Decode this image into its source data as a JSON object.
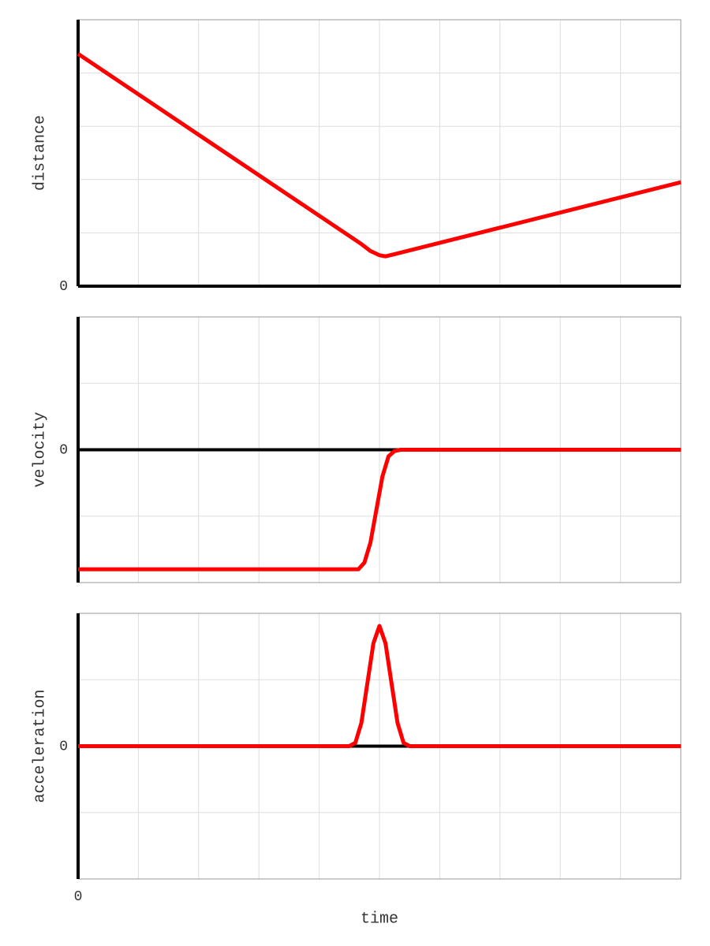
{
  "chart_data": [
    {
      "type": "line",
      "ylabel": "distance",
      "xlim": [
        0,
        10
      ],
      "ylim": [
        0,
        5
      ],
      "yticks": [
        0
      ],
      "ygrid": [
        0,
        1,
        2,
        3,
        4,
        5
      ],
      "xgrid": [
        0,
        1,
        2,
        3,
        4,
        5,
        6,
        7,
        8,
        9,
        10
      ],
      "x": [
        0,
        4.7,
        4.85,
        5.0,
        5.1,
        5.25,
        10
      ],
      "series": [
        {
          "color": "#ff0000",
          "values": [
            4.36,
            0.79,
            0.66,
            0.58,
            0.56,
            0.6,
            1.95
          ]
        }
      ]
    },
    {
      "type": "line",
      "ylabel": "velocity",
      "xlim": [
        0,
        10
      ],
      "ylim": [
        -2,
        2
      ],
      "yticks": [
        0
      ],
      "ygrid": [
        -2,
        -1,
        0,
        1,
        2
      ],
      "xgrid": [
        0,
        1,
        2,
        3,
        4,
        5,
        6,
        7,
        8,
        9,
        10
      ],
      "x": [
        0,
        4.65,
        4.75,
        4.85,
        4.95,
        5.05,
        5.15,
        5.25,
        5.35,
        10
      ],
      "series": [
        {
          "color": "#ff0000",
          "values": [
            -1.8,
            -1.8,
            -1.7,
            -1.4,
            -0.9,
            -0.4,
            -0.1,
            -0.02,
            0,
            0
          ]
        }
      ]
    },
    {
      "type": "line",
      "ylabel": "acceleration",
      "xlabel": "time",
      "xlim": [
        0,
        10
      ],
      "xticks": [
        0
      ],
      "ylim": [
        -2,
        2
      ],
      "yticks": [
        0
      ],
      "ygrid": [
        -2,
        -1,
        0,
        1,
        2
      ],
      "xgrid": [
        0,
        1,
        2,
        3,
        4,
        5,
        6,
        7,
        8,
        9,
        10
      ],
      "x": [
        0,
        4.5,
        4.6,
        4.7,
        4.8,
        4.9,
        5.0,
        5.1,
        5.2,
        5.3,
        5.4,
        5.5,
        10
      ],
      "series": [
        {
          "color": "#ff0000",
          "values": [
            0,
            0,
            0.05,
            0.35,
            0.95,
            1.55,
            1.81,
            1.55,
            0.95,
            0.35,
            0.05,
            0,
            0
          ]
        }
      ]
    }
  ]
}
